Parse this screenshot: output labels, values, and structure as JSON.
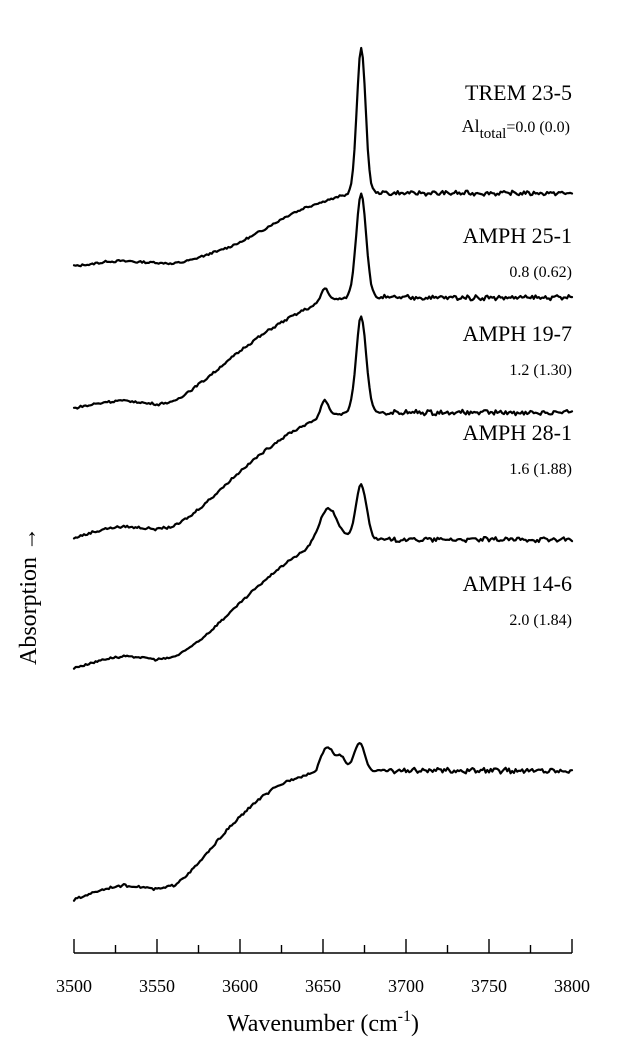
{
  "chart_data": {
    "type": "line",
    "xlabel": "Wavenumber (cm",
    "xlabel_sup": "-1",
    "xlabel_close": ")",
    "ylabel": "Absorption →",
    "xlim": [
      3500,
      3800
    ],
    "xticks_major": [
      3500,
      3550,
      3600,
      3650,
      3700,
      3750,
      3800
    ],
    "xtick_minor_step": 10,
    "grid": false,
    "series": [
      {
        "name": "TREM 23-5",
        "al_prefix": "Al",
        "al_sub": "total",
        "al_text": "=0.0 (0.0)",
        "peaks": [
          {
            "x": 3673,
            "height": 260,
            "width": 2.6
          }
        ],
        "baseline_right": 0,
        "offset": 0,
        "x": [
          3500,
          3510,
          3520,
          3530,
          3540,
          3550,
          3560,
          3570,
          3580,
          3590,
          3600,
          3610,
          3620,
          3630,
          3640,
          3650,
          3660,
          3665,
          3670,
          3680,
          3690,
          3700,
          3710,
          3720,
          3730,
          3740,
          3750,
          3760,
          3770,
          3780,
          3790,
          3800
        ],
        "y": [
          0,
          3,
          8,
          9,
          7,
          6,
          4,
          10,
          20,
          30,
          42,
          58,
          75,
          92,
          105,
          115,
          124,
          128,
          130,
          131,
          130,
          130,
          130,
          130,
          130,
          130,
          130,
          130,
          130,
          130,
          130,
          130
        ]
      },
      {
        "name": "AMPH 25-1",
        "al_text": "0.8 (0.62)",
        "peaks": [
          {
            "x": 3651,
            "height": 22,
            "width": 2.4
          },
          {
            "x": 3673,
            "height": 168,
            "width": 3.0
          }
        ],
        "offset": 0,
        "x": [
          3500,
          3510,
          3520,
          3530,
          3540,
          3550,
          3560,
          3570,
          3580,
          3590,
          3600,
          3610,
          3620,
          3630,
          3640,
          3650,
          3660,
          3670,
          3680,
          3690,
          3700,
          3710,
          3720,
          3730,
          3740,
          3750,
          3760,
          3770,
          3780,
          3790,
          3800
        ],
        "y": [
          0,
          5,
          10,
          12,
          9,
          6,
          10,
          28,
          48,
          70,
          92,
          112,
          130,
          146,
          160,
          170,
          176,
          178,
          178,
          178,
          178,
          178,
          178,
          178,
          178,
          178,
          178,
          178,
          178,
          178,
          178
        ]
      },
      {
        "name": "AMPH 19-7",
        "al_text": "1.2 (1.30)",
        "peaks": [
          {
            "x": 3651,
            "height": 26,
            "width": 2.5
          },
          {
            "x": 3673,
            "height": 150,
            "width": 3.0
          }
        ],
        "offset": 0,
        "x": [
          3500,
          3510,
          3520,
          3530,
          3540,
          3550,
          3560,
          3570,
          3580,
          3590,
          3600,
          3610,
          3620,
          3630,
          3640,
          3650,
          3660,
          3670,
          3680,
          3690,
          3700,
          3710,
          3720,
          3730,
          3740,
          3750,
          3760,
          3770,
          3780,
          3790,
          3800
        ],
        "y": [
          0,
          8,
          15,
          18,
          16,
          14,
          18,
          34,
          56,
          80,
          104,
          126,
          146,
          164,
          178,
          188,
          194,
          196,
          196,
          196,
          196,
          196,
          196,
          196,
          196,
          196,
          196,
          196,
          196,
          196,
          196
        ]
      },
      {
        "name": "AMPH 28-1",
        "al_text": "1.6 (1.88)",
        "peaks": [
          {
            "x": 3653,
            "height": 58,
            "width": 5.5
          },
          {
            "x": 3673,
            "height": 92,
            "width": 3.2
          }
        ],
        "offset": 0,
        "x": [
          3500,
          3510,
          3520,
          3530,
          3540,
          3550,
          3560,
          3570,
          3580,
          3590,
          3600,
          3610,
          3620,
          3630,
          3640,
          3650,
          3660,
          3670,
          3680,
          3690,
          3700,
          3710,
          3720,
          3730,
          3740,
          3750,
          3760,
          3770,
          3780,
          3790,
          3800
        ],
        "y": [
          0,
          8,
          16,
          19,
          18,
          14,
          18,
          34,
          56,
          82,
          108,
          134,
          158,
          180,
          196,
          206,
          212,
          214,
          214,
          214,
          214,
          214,
          214,
          214,
          214,
          214,
          214,
          214,
          214,
          214,
          214
        ]
      },
      {
        "name": "AMPH 14-6",
        "al_text": "2.0 (1.84)",
        "peaks": [
          {
            "x": 3652,
            "height": 36,
            "width": 3.2
          },
          {
            "x": 3660,
            "height": 22,
            "width": 3.5
          },
          {
            "x": 3672,
            "height": 42,
            "width": 3.0
          }
        ],
        "offset": 0,
        "x": [
          3500,
          3510,
          3520,
          3530,
          3540,
          3550,
          3560,
          3570,
          3580,
          3590,
          3600,
          3610,
          3620,
          3630,
          3640,
          3650,
          3660,
          3670,
          3680,
          3690,
          3700,
          3710,
          3720,
          3730,
          3740,
          3750,
          3760,
          3770,
          3780,
          3790,
          3800
        ],
        "y": [
          0,
          10,
          18,
          22,
          20,
          16,
          22,
          42,
          70,
          100,
          126,
          150,
          168,
          182,
          190,
          194,
          196,
          196,
          196,
          196,
          196,
          196,
          196,
          196,
          196,
          196,
          196,
          196,
          196,
          196,
          196
        ]
      }
    ]
  }
}
